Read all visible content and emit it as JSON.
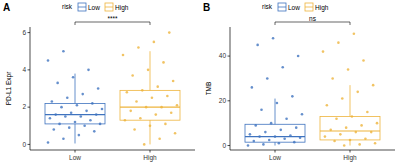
{
  "chart_data": [
    {
      "type": "box",
      "panel_label": "A",
      "legend_title": "risk",
      "y_label": "PD-L1 Expr",
      "significance": "****",
      "categories": [
        "Low",
        "High"
      ],
      "ylim": [
        -0.3,
        6.3
      ],
      "yticks": [
        0,
        2,
        4,
        6
      ],
      "grid": false,
      "legend": "top",
      "series": [
        {
          "name": "Low",
          "color": "#3f73bf",
          "whisker_low": 0.05,
          "q1": 1.1,
          "median": 1.6,
          "q3": 2.2,
          "whisker_high": 3.8,
          "points": [
            0.1,
            0.3,
            0.5,
            0.7,
            0.8,
            0.9,
            1.0,
            1.1,
            1.1,
            1.2,
            1.3,
            1.4,
            1.5,
            1.5,
            1.6,
            1.6,
            1.7,
            1.8,
            1.9,
            2.0,
            2.1,
            2.2,
            2.3,
            2.5,
            2.7,
            3.0,
            3.3,
            3.6,
            4.0,
            4.5,
            5.0
          ]
        },
        {
          "name": "High",
          "color": "#eeb43c",
          "whisker_low": 0.0,
          "q1": 1.3,
          "median": 2.0,
          "q3": 2.9,
          "whisker_high": 5.0,
          "points": [
            0.0,
            0.3,
            0.6,
            0.8,
            1.0,
            1.1,
            1.3,
            1.4,
            1.6,
            1.7,
            1.8,
            2.0,
            2.0,
            2.1,
            2.3,
            2.5,
            2.6,
            2.8,
            2.9,
            3.1,
            3.4,
            3.7,
            4.0,
            4.4,
            4.8,
            5.2,
            5.5,
            6.0
          ]
        }
      ]
    },
    {
      "type": "box",
      "panel_label": "B",
      "legend_title": "risk",
      "y_label": "TMB",
      "significance": "ns",
      "categories": [
        "Low",
        "High"
      ],
      "ylim": [
        -2,
        53
      ],
      "yticks": [
        0,
        20,
        40
      ],
      "grid": false,
      "legend": "top",
      "series": [
        {
          "name": "Low",
          "color": "#3f73bf",
          "whisker_low": 0,
          "q1": 1.5,
          "median": 4,
          "q3": 9.5,
          "whisker_high": 21,
          "points": [
            0,
            0.5,
            1,
            1.5,
            2,
            2.5,
            3,
            3.5,
            4,
            4,
            4.5,
            5,
            6,
            7,
            8,
            9,
            10,
            12,
            14,
            16,
            19,
            22,
            26,
            30,
            35,
            40,
            45,
            48
          ]
        },
        {
          "name": "High",
          "color": "#eeb43c",
          "whisker_low": 0,
          "q1": 2.5,
          "median": 6.5,
          "q3": 13,
          "whisker_high": 27,
          "points": [
            0,
            0.5,
            1,
            2,
            2.5,
            3,
            4,
            5,
            6,
            6,
            7,
            8,
            9,
            10,
            12,
            13,
            15,
            18,
            21,
            24,
            27,
            30,
            34,
            38,
            42,
            46,
            50
          ]
        }
      ]
    }
  ]
}
